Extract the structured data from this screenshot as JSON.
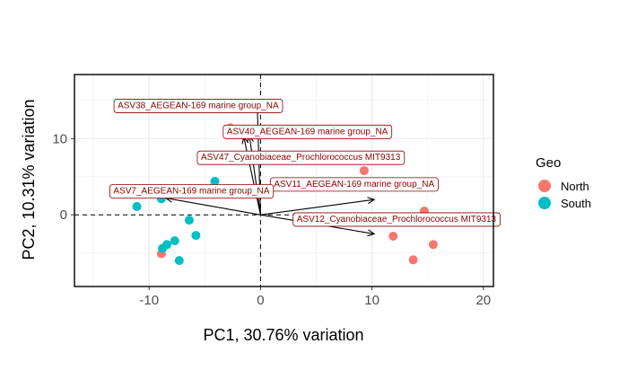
{
  "chart_data": {
    "type": "scatter",
    "title": "",
    "xlabel": "PC1, 30.76% variation",
    "ylabel": "PC2, 10.31% variation",
    "xlim": [
      -16.7,
      20.9
    ],
    "ylim": [
      -9.4,
      18.4
    ],
    "x_ticks": [
      -10,
      0,
      10,
      20
    ],
    "x_tick_labels": [
      "-10",
      "0",
      "10",
      "20"
    ],
    "y_ticks": [
      0,
      10
    ],
    "y_tick_labels": [
      "0",
      "10"
    ],
    "grid": true,
    "reference_lines": {
      "x": 0,
      "y": 0,
      "style": "dashed"
    },
    "legend": {
      "title": "Geo",
      "placement": "right",
      "entries": [
        {
          "label": "North",
          "color": "#F8766D"
        },
        {
          "label": "South",
          "color": "#00BFC4"
        }
      ]
    },
    "series": [
      {
        "name": "North",
        "color": "#F8766D",
        "points": [
          {
            "x": -0.1,
            "y": 14.6
          },
          {
            "x": -2.7,
            "y": 11.4
          },
          {
            "x": 9.3,
            "y": 5.8
          },
          {
            "x": 14.7,
            "y": 0.5
          },
          {
            "x": 14.4,
            "y": -0.9
          },
          {
            "x": 11.9,
            "y": -2.8
          },
          {
            "x": 15.5,
            "y": -3.9
          },
          {
            "x": 13.7,
            "y": -5.9
          },
          {
            "x": -8.9,
            "y": -5.1
          }
        ]
      },
      {
        "name": "South",
        "color": "#00BFC4",
        "points": [
          {
            "x": -4.1,
            "y": 4.4
          },
          {
            "x": -8.9,
            "y": 2.1
          },
          {
            "x": -11.1,
            "y": 1.1
          },
          {
            "x": -6.4,
            "y": -0.7
          },
          {
            "x": -5.8,
            "y": -2.7
          },
          {
            "x": -7.7,
            "y": -3.4
          },
          {
            "x": -8.4,
            "y": -3.9
          },
          {
            "x": -8.8,
            "y": -4.4
          },
          {
            "x": -7.3,
            "y": -6.0
          }
        ]
      }
    ],
    "loadings": [
      {
        "label": "ASV38_AEGEAN-169 marine group_NA",
        "x": -0.3,
        "y": 14.6,
        "lx": -5.6,
        "ly": 14.4
      },
      {
        "label": "ASV40_AEGEAN-169 marine group_NA",
        "x": -1.0,
        "y": 10.4,
        "lx": 4.2,
        "ly": 11.0
      },
      {
        "label": "ASV47_Cyanobiaceae_Prochlorococcus MIT9313",
        "x": -1.5,
        "y": 10.2,
        "lx": 3.6,
        "ly": 7.6
      },
      {
        "label": "ASV11_AEGEAN-169 marine group_NA",
        "x": 10.2,
        "y": 2.0,
        "lx": 8.4,
        "ly": 4.1
      },
      {
        "label": "ASV7_AEGEAN-169 marine group_NA",
        "x": -8.5,
        "y": 2.2,
        "lx": -6.2,
        "ly": 3.2
      },
      {
        "label": "ASV12_Cyanobiaceae_Prochlorococcus MIT9313",
        "x": 10.2,
        "y": -2.5,
        "lx": 12.2,
        "ly": -0.5
      }
    ]
  }
}
